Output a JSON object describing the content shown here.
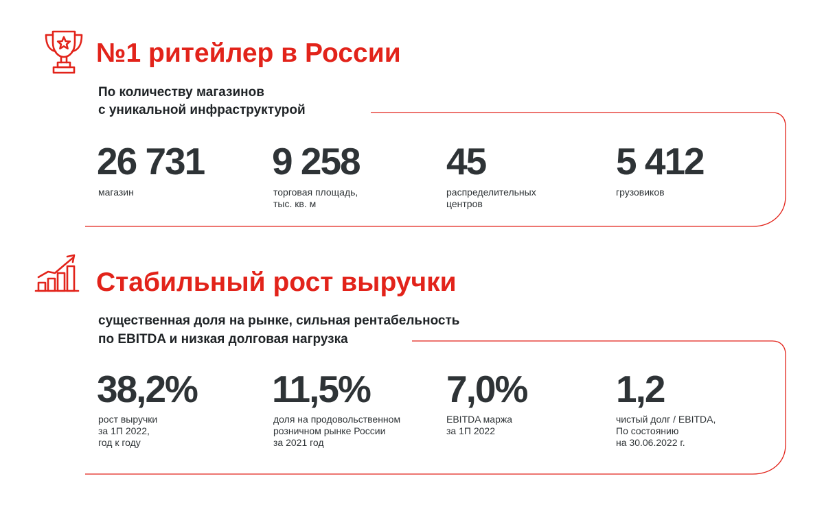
{
  "section1": {
    "title": "№1 ритейлер в России",
    "subtitle_line1": "По количеству магазинов",
    "subtitle_line2": "с уникальной инфраструктурой",
    "icon": "trophy-icon",
    "stats": [
      {
        "value": "26 731",
        "label_line1": "магазин",
        "label_line2": ""
      },
      {
        "value": "9 258",
        "label_line1": "торговая площадь,",
        "label_line2": "тыс. кв. м"
      },
      {
        "value": "45",
        "label_line1": "распределительных",
        "label_line2": "центров"
      },
      {
        "value": "5 412",
        "label_line1": "грузовиков",
        "label_line2": ""
      }
    ]
  },
  "section2": {
    "title": "Стабильный рост выручки",
    "subtitle_line1": "существенная доля на рынке, сильная рентабельность",
    "subtitle_line2": "по EBITDA и низкая долговая нагрузка",
    "icon": "growth-chart-icon",
    "stats": [
      {
        "value": "38,2%",
        "label_line1": "рост выручки",
        "label_line2": "за 1П 2022,",
        "label_line3": "год к году"
      },
      {
        "value": "11,5%",
        "label_line1": "доля на продовольственном",
        "label_line2": "розничном рынке России",
        "label_line3": "за 2021 год"
      },
      {
        "value": "7,0%",
        "label_line1": "EBITDA маржа",
        "label_line2": "за 1П 2022",
        "label_line3": ""
      },
      {
        "value": "1,2",
        "label_line1": "чистый долг / EBITDA,",
        "label_line2": "По состоянию",
        "label_line3": "на 30.06.2022 г."
      }
    ]
  },
  "colors": {
    "accent": "#e2231a",
    "text_dark": "#2e3336"
  }
}
